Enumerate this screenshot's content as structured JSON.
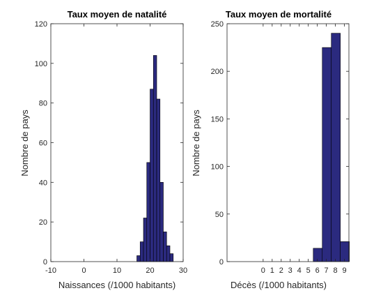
{
  "chart_data": [
    {
      "type": "bar",
      "title": "Taux moyen de natalité",
      "xlabel": "Naissances (/1000 habitants)",
      "ylabel": "Nombre de pays",
      "xlim": [
        -10,
        30
      ],
      "ylim": [
        0,
        120
      ],
      "xticks": [
        -10,
        0,
        10,
        20,
        30
      ],
      "yticks": [
        0,
        20,
        40,
        60,
        80,
        100,
        120
      ],
      "bar_color": "#2b2a7f",
      "bins": [
        {
          "x0": 16.0,
          "x1": 17.0,
          "value": 3
        },
        {
          "x0": 17.0,
          "x1": 18.0,
          "value": 10
        },
        {
          "x0": 18.0,
          "x1": 19.0,
          "value": 22
        },
        {
          "x0": 19.0,
          "x1": 20.0,
          "value": 50
        },
        {
          "x0": 20.0,
          "x1": 21.0,
          "value": 87
        },
        {
          "x0": 21.0,
          "x1": 22.0,
          "value": 104
        },
        {
          "x0": 22.0,
          "x1": 23.0,
          "value": 82
        },
        {
          "x0": 23.0,
          "x1": 24.0,
          "value": 40
        },
        {
          "x0": 24.0,
          "x1": 25.0,
          "value": 15
        },
        {
          "x0": 25.0,
          "x1": 26.0,
          "value": 8
        },
        {
          "x0": 26.0,
          "x1": 27.0,
          "value": 4
        }
      ]
    },
    {
      "type": "bar",
      "title": "Taux moyen de mortalité",
      "xlabel": "Décès (/1000 habitants)",
      "ylabel": "Nombre de pays",
      "xlim": [
        -4,
        9.5
      ],
      "ylim": [
        0,
        250
      ],
      "xticks": [
        0,
        1,
        2,
        3,
        4,
        5,
        6,
        7,
        8,
        9
      ],
      "yticks": [
        0,
        50,
        100,
        150,
        200,
        250
      ],
      "bar_color": "#2b2a7f",
      "bins": [
        {
          "x0": 5.55,
          "x1": 6.55,
          "value": 14
        },
        {
          "x0": 6.55,
          "x1": 7.55,
          "value": 225
        },
        {
          "x0": 7.55,
          "x1": 8.55,
          "value": 240
        },
        {
          "x0": 8.55,
          "x1": 9.55,
          "value": 21
        }
      ]
    }
  ]
}
